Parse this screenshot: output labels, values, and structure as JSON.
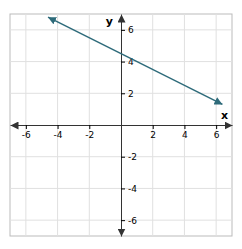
{
  "chart_data": {
    "type": "line",
    "x": [
      -4.6,
      6.4
    ],
    "values": [
      6.8,
      1.3
    ],
    "color": "#2e6b7a",
    "x_label": "x",
    "y_label": "y",
    "xlim": [
      -7,
      7
    ],
    "ylim": [
      -7,
      7
    ],
    "xticks": [
      -6,
      -4,
      -2,
      2,
      4,
      6
    ],
    "yticks": [
      -6,
      -4,
      -2,
      2,
      4,
      6
    ],
    "grid": true
  }
}
